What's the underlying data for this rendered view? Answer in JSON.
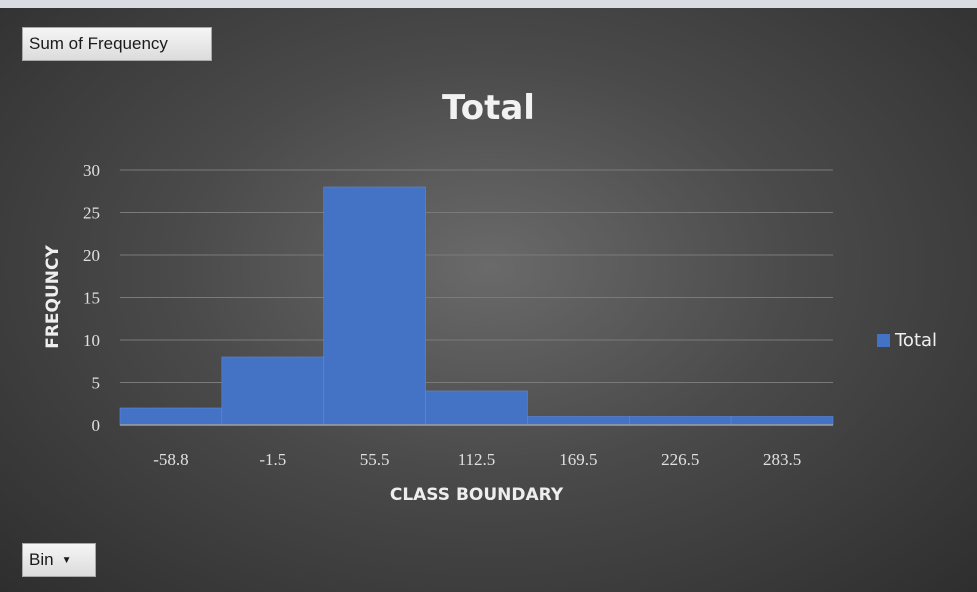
{
  "pivot": {
    "value_field": "Sum of Frequency",
    "axis_field": "Bin"
  },
  "colors": {
    "bar": "#4472c4",
    "bar_edge": "#5b8ae0",
    "gridline": "#7a7a7a",
    "axis": "#a0a0a0"
  },
  "chart_data": {
    "type": "bar",
    "title": "Total",
    "xlabel": "CLASS BOUNDARY",
    "ylabel": "FREQUNCY",
    "categories": [
      "-58.8",
      "-1.5",
      "55.5",
      "112.5",
      "169.5",
      "226.5",
      "283.5"
    ],
    "series": [
      {
        "name": "Total",
        "values": [
          2,
          8,
          28,
          4,
          1,
          1,
          1
        ]
      }
    ],
    "ylim": [
      0,
      30
    ],
    "yticks": [
      0,
      5,
      10,
      15,
      20,
      25,
      30
    ],
    "grid": true,
    "gap_width": 0,
    "legend": "right"
  }
}
